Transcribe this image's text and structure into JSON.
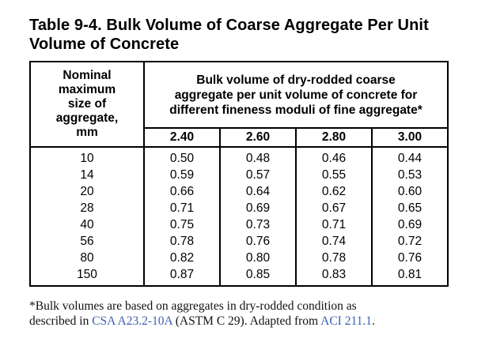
{
  "title_line1": "Table 9-4. Bulk Volume of Coarse Aggregate Per Unit",
  "title_line2": "Volume of Concrete",
  "table": {
    "left_header": [
      "Nominal",
      "maximum",
      "size of",
      "aggregate,",
      "mm"
    ],
    "group_header": [
      "Bulk volume of dry-rodded coarse",
      "aggregate per unit volume of concrete for",
      "different fineness moduli of fine aggregate*"
    ],
    "fineness_moduli": [
      "2.40",
      "2.60",
      "2.80",
      "3.00"
    ],
    "rows": [
      {
        "size": "10",
        "values": [
          "0.50",
          "0.48",
          "0.46",
          "0.44"
        ]
      },
      {
        "size": "14",
        "values": [
          "0.59",
          "0.57",
          "0.55",
          "0.53"
        ]
      },
      {
        "size": "20",
        "values": [
          "0.66",
          "0.64",
          "0.62",
          "0.60"
        ]
      },
      {
        "size": "28",
        "values": [
          "0.71",
          "0.69",
          "0.67",
          "0.65"
        ]
      },
      {
        "size": "40",
        "values": [
          "0.75",
          "0.73",
          "0.71",
          "0.69"
        ]
      },
      {
        "size": "56",
        "values": [
          "0.78",
          "0.76",
          "0.74",
          "0.72"
        ]
      },
      {
        "size": "80",
        "values": [
          "0.82",
          "0.80",
          "0.78",
          "0.76"
        ]
      },
      {
        "size": "150",
        "values": [
          "0.87",
          "0.85",
          "0.83",
          "0.81"
        ]
      }
    ]
  },
  "footnote": {
    "line1": "*Bulk volumes are based on aggregates in dry-rodded condition as",
    "line2_prefix": "described in ",
    "link1": "CSA A23.2-10A",
    "line2_middle": " (ASTM C 29). Adapted from ",
    "link2": "ACI 211.1",
    "line2_suffix": "."
  },
  "colors": {
    "link": "#3a5fb0",
    "text": "#000000"
  }
}
